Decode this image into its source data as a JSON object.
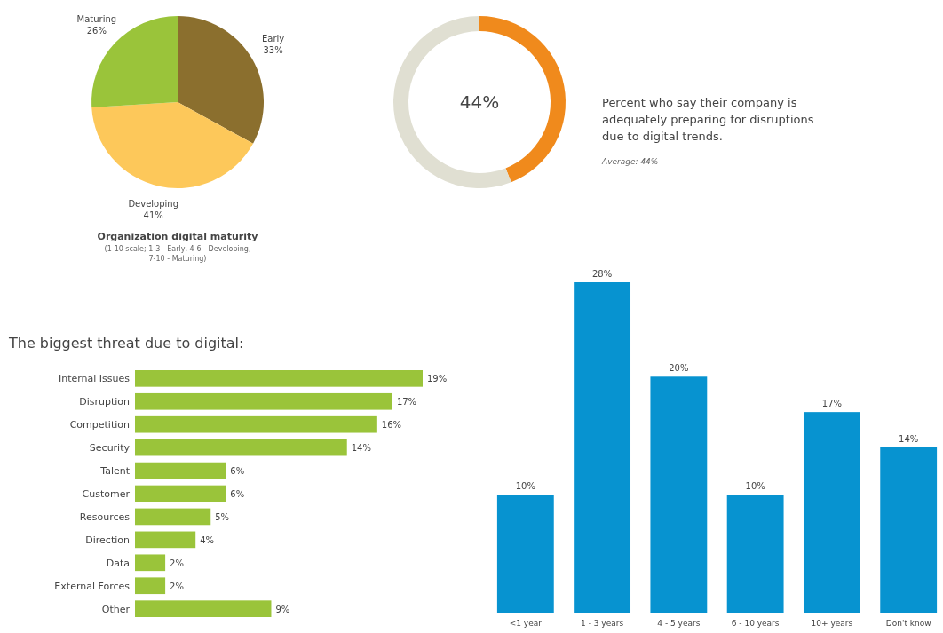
{
  "chart_data": [
    {
      "type": "pie",
      "title": "Organization digital maturity",
      "subtitle": "(1-10 scale; 1-3 - Early, 4-6 - Developing, 7-10 - Maturing)",
      "categories": [
        "Early",
        "Developing",
        "Maturing"
      ],
      "values": [
        33,
        41,
        26
      ],
      "value_labels": [
        "33%",
        "41%",
        "26%"
      ],
      "colors": [
        "#8b6f2e",
        "#fdc85a",
        "#9ac43a"
      ]
    },
    {
      "type": "donut",
      "title": "Percent who say their company is adequately preparing for disruptions due to digital trends.",
      "categories": [
        null,
        null
      ],
      "values": [
        44,
        56
      ],
      "value_labels": [
        "44%",
        null
      ],
      "colors": [
        "#f08a1c",
        "#e0dfd2"
      ],
      "annotations": [
        "Average: 44%"
      ]
    },
    {
      "type": "bar",
      "orientation": "horizontal",
      "title": "The biggest threat due to digital:",
      "categories": [
        "Internal Issues",
        "Disruption",
        "Competition",
        "Security",
        "Talent",
        "Customer",
        "Resources",
        "Direction",
        "Data",
        "External Forces",
        "Other"
      ],
      "values": [
        19,
        17,
        16,
        14,
        6,
        6,
        5,
        4,
        2,
        2,
        9
      ],
      "value_labels": [
        "19%",
        "17%",
        "16%",
        "14%",
        "6%",
        "6%",
        "5%",
        "4%",
        "2%",
        "2%",
        "9%"
      ],
      "color": "#9ac43a"
    },
    {
      "type": "bar",
      "categories": [
        "<1 year",
        "1 - 3 years",
        "4 - 5 years",
        "6 - 10 years",
        "10+ years",
        "Don't know"
      ],
      "values": [
        10,
        28,
        20,
        10,
        17,
        14
      ],
      "value_labels": [
        "10%",
        "28%",
        "20%",
        "10%",
        "17%",
        "14%"
      ],
      "color": "#0793d0"
    }
  ]
}
